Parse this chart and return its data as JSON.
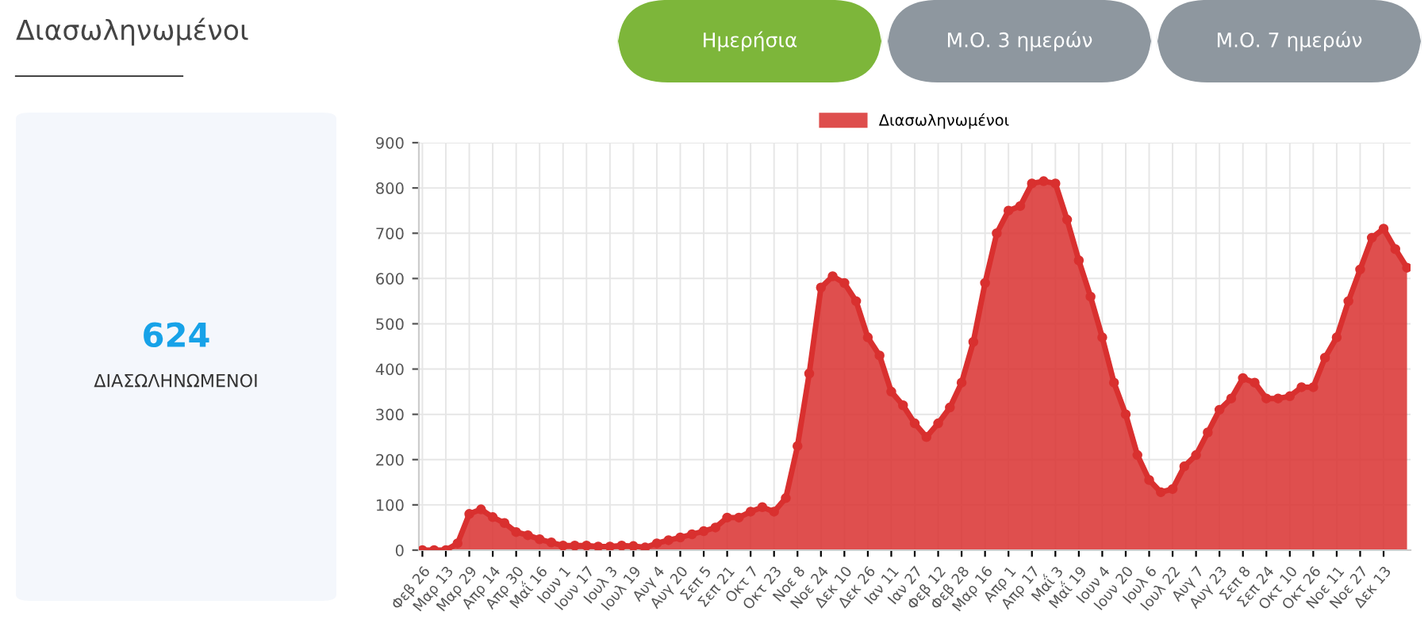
{
  "chart_data": [
    {
      "type": "other",
      "title": "Διασωληνωμένοι",
      "annotations": [
        "Ημερήσια",
        "Μ.Ο. 3 ημερών",
        "Μ.Ο. 7 ημερών",
        "624",
        "ΔΙΑΣΩΛΗΝΩΜΕΝΟΙ"
      ]
    },
    {
      "type": "area",
      "categories": [
        "Φεβ 26",
        null,
        "Μαρ 13",
        null,
        "Μαρ 29",
        null,
        "Απρ 14",
        null,
        "Απρ 30",
        null,
        "Μαΐ 16",
        null,
        "Ιουν 1",
        null,
        "Ιουν 17",
        null,
        "Ιουλ 3",
        null,
        "Ιουλ 19",
        null,
        "Αυγ 4",
        null,
        "Αυγ 20",
        null,
        "Σεπ 5",
        null,
        "Σεπ 21",
        null,
        "Οκτ 7",
        null,
        "Οκτ 23",
        null,
        "Νοε 8",
        null,
        "Νοε 24",
        null,
        "Δεκ 10",
        null,
        "Δεκ 26",
        null,
        "Ιαν 11",
        null,
        "Ιαν 27",
        null,
        "Φεβ 12",
        null,
        "Φεβ 28",
        null,
        "Μαρ 16",
        null,
        "Απρ 1",
        null,
        "Απρ 17",
        null,
        "Μαΐ 3",
        null,
        "Μαΐ 19",
        null,
        "Ιουν 4",
        null,
        "Ιουν 20",
        null,
        "Ιουλ 6",
        null,
        "Ιουλ 22",
        null,
        "Αυγ 7",
        null,
        "Αυγ 23",
        null,
        "Σεπ 8",
        null,
        "Σεπ 24",
        null,
        "Οκτ 10",
        null,
        "Οκτ 26",
        null,
        "Νοε 11",
        null,
        "Νοε 27",
        null,
        "Δεκ 13",
        null,
        null
      ],
      "series": [
        {
          "name": "Διασωληνωμένοι",
          "color": "#d9302f",
          "values": [
            0,
            0,
            0,
            15,
            80,
            90,
            73,
            60,
            40,
            33,
            24,
            17,
            10,
            10,
            10,
            8,
            8,
            10,
            9,
            6,
            15,
            22,
            28,
            35,
            42,
            50,
            72,
            72,
            85,
            95,
            85,
            115,
            230,
            390,
            580,
            605,
            590,
            550,
            470,
            430,
            350,
            320,
            280,
            250,
            280,
            315,
            370,
            460,
            590,
            700,
            750,
            760,
            810,
            815,
            810,
            730,
            640,
            560,
            470,
            370,
            300,
            210,
            155,
            128,
            135,
            185,
            210,
            260,
            310,
            335,
            380,
            370,
            335,
            335,
            340,
            360,
            360,
            425,
            470,
            550,
            620,
            690,
            710,
            665,
            624
          ]
        }
      ],
      "ylim": [
        0,
        900
      ],
      "yticks": [
        0,
        100,
        200,
        300,
        400,
        500,
        600,
        700,
        800,
        900
      ],
      "grid": true,
      "legend": "top",
      "marker": "circle",
      "line_style": "solid"
    }
  ]
}
